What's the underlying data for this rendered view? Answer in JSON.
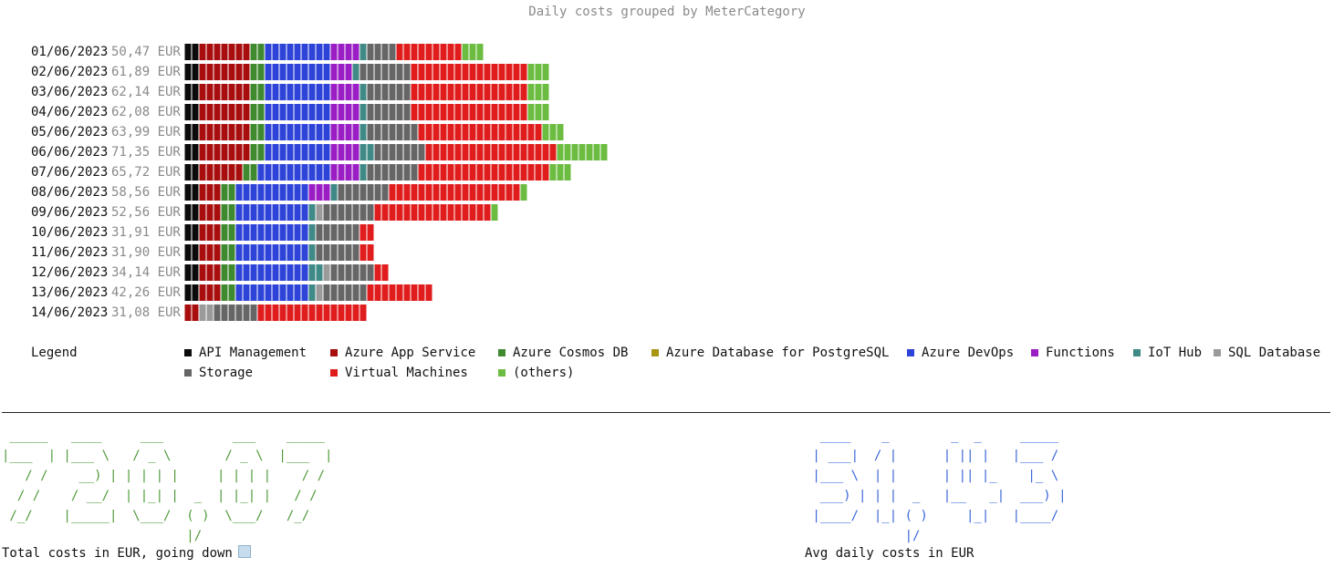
{
  "chart_data": {
    "type": "stacked-bar-horizontal",
    "title": "Daily costs grouped by MeterCategory",
    "currency": "EUR",
    "categories": [
      "API Management",
      "Azure App Service",
      "Azure Cosmos DB",
      "Azure Database for PostgreSQL",
      "Azure DevOps",
      "Functions",
      "IoT Hub",
      "SQL Database",
      "Storage",
      "Virtual Machines",
      "(others)"
    ],
    "colors": [
      "#0b0b0b",
      "#a80e0e",
      "#3f8a2f",
      "#a89612",
      "#2e43d8",
      "#9b1ec4",
      "#3f8a86",
      "#9a9a9a",
      "#666666",
      "#e01c1c",
      "#6cbc42"
    ],
    "rows": [
      {
        "date": "01/06/2023",
        "total": "50,47 EUR",
        "segments": [
          2,
          7,
          2,
          0,
          9,
          4,
          1,
          0,
          4,
          9,
          3
        ]
      },
      {
        "date": "02/06/2023",
        "total": "61,89 EUR",
        "segments": [
          2,
          7,
          2,
          0,
          9,
          3,
          1,
          0,
          7,
          16,
          3
        ]
      },
      {
        "date": "03/06/2023",
        "total": "62,14 EUR",
        "segments": [
          2,
          7,
          2,
          0,
          9,
          4,
          1,
          0,
          6,
          16,
          3
        ]
      },
      {
        "date": "04/06/2023",
        "total": "62,08 EUR",
        "segments": [
          2,
          7,
          2,
          0,
          9,
          4,
          1,
          0,
          6,
          16,
          3
        ]
      },
      {
        "date": "05/06/2023",
        "total": "63,99 EUR",
        "segments": [
          2,
          7,
          2,
          0,
          9,
          4,
          1,
          0,
          7,
          17,
          3
        ]
      },
      {
        "date": "06/06/2023",
        "total": "71,35 EUR",
        "segments": [
          2,
          7,
          2,
          0,
          9,
          4,
          2,
          0,
          7,
          18,
          7
        ]
      },
      {
        "date": "07/06/2023",
        "total": "65,72 EUR",
        "segments": [
          2,
          6,
          2,
          0,
          10,
          4,
          1,
          0,
          7,
          18,
          3
        ]
      },
      {
        "date": "08/06/2023",
        "total": "58,56 EUR",
        "segments": [
          2,
          3,
          2,
          0,
          10,
          3,
          1,
          0,
          7,
          18,
          1
        ]
      },
      {
        "date": "09/06/2023",
        "total": "52,56 EUR",
        "segments": [
          2,
          3,
          2,
          0,
          10,
          0,
          1,
          1,
          7,
          16,
          1
        ]
      },
      {
        "date": "10/06/2023",
        "total": "31,91 EUR",
        "segments": [
          2,
          3,
          2,
          0,
          10,
          0,
          1,
          0,
          6,
          2,
          0
        ]
      },
      {
        "date": "11/06/2023",
        "total": "31,90 EUR",
        "segments": [
          2,
          3,
          2,
          0,
          10,
          0,
          1,
          0,
          6,
          2,
          0
        ]
      },
      {
        "date": "12/06/2023",
        "total": "34,14 EUR",
        "segments": [
          2,
          3,
          2,
          0,
          10,
          0,
          2,
          1,
          6,
          2,
          0
        ]
      },
      {
        "date": "13/06/2023",
        "total": "42,26 EUR",
        "segments": [
          2,
          3,
          2,
          0,
          10,
          0,
          1,
          1,
          6,
          9,
          0
        ]
      },
      {
        "date": "14/06/2023",
        "total": "31,08 EUR",
        "segments": [
          0,
          2,
          0,
          0,
          0,
          0,
          0,
          2,
          6,
          15,
          0
        ]
      }
    ]
  },
  "legend": {
    "label": "Legend",
    "items": [
      "API Management",
      "Azure App Service",
      "Azure Cosmos DB",
      "Azure Database for PostgreSQL",
      "Azure DevOps",
      "Functions",
      "IoT Hub",
      "SQL Database",
      "Storage",
      "Virtual Machines",
      "(others)"
    ]
  },
  "summary": {
    "total_ascii": " _____   ____     ___         ___    _____\n|___  | |___ \\   / _ \\       / _ \\  |___  |\n   / /    __) | | | | |     | | | |    / /\n  / /    / __/  | |_| |  _  | |_| |   / /\n /_/    |_____|  \\___/  ( )  \\___/   /_/\n                        |/",
    "total_caption": "Total costs in EUR, going down",
    "avg_ascii": "  ____    _        _  _     _____\n | ___|  / |      | || |   |___ /\n |___ \\  | |      | || |_    |_ \\\n  ___) | | |  _   |__   _|  ___) |\n |____/  |_| ( )     |_|   |____/\n             |/",
    "avg_caption": "Avg daily costs in EUR",
    "trend_icon": "chart-down-icon"
  }
}
